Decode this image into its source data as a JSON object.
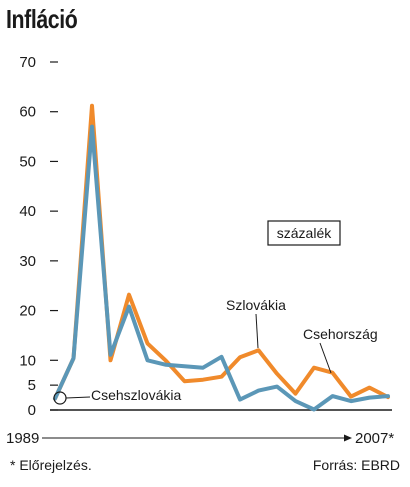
{
  "chart_data": {
    "type": "line",
    "title": "Infláció",
    "unit_label": "százalék",
    "x_start_label": "1989",
    "x_end_label": "2007*",
    "ylim": [
      0,
      70
    ],
    "yticks": [
      0,
      5,
      10,
      20,
      30,
      40,
      50,
      60,
      70
    ],
    "grid": false,
    "x": [
      1989,
      1990,
      1991,
      1992,
      1993,
      1994,
      1995,
      1996,
      1997,
      1998,
      1999,
      2000,
      2001,
      2002,
      2003,
      2004,
      2005,
      2006,
      2007
    ],
    "series": [
      {
        "name": "Szlovákia",
        "color": "#f08a2b",
        "values": [
          2.3,
          10.4,
          61.2,
          10.0,
          23.2,
          13.4,
          9.9,
          5.8,
          6.1,
          6.7,
          10.6,
          12.0,
          7.3,
          3.3,
          8.5,
          7.5,
          2.7,
          4.5,
          2.6
        ]
      },
      {
        "name": "Csehország",
        "color": "#5b97b7",
        "values": [
          2.3,
          10.4,
          57.0,
          11.1,
          20.8,
          10.0,
          9.1,
          8.8,
          8.5,
          10.7,
          2.1,
          3.9,
          4.7,
          1.8,
          0.1,
          2.8,
          1.8,
          2.5,
          2.8
        ]
      }
    ],
    "annotations": {
      "slovakia": "Szlovákia",
      "czech": "Csehország",
      "czechoslovakia": "Csehszlovákia"
    }
  },
  "footer": {
    "note": "* Előrejelzés.",
    "source": "Forrás: EBRD"
  }
}
